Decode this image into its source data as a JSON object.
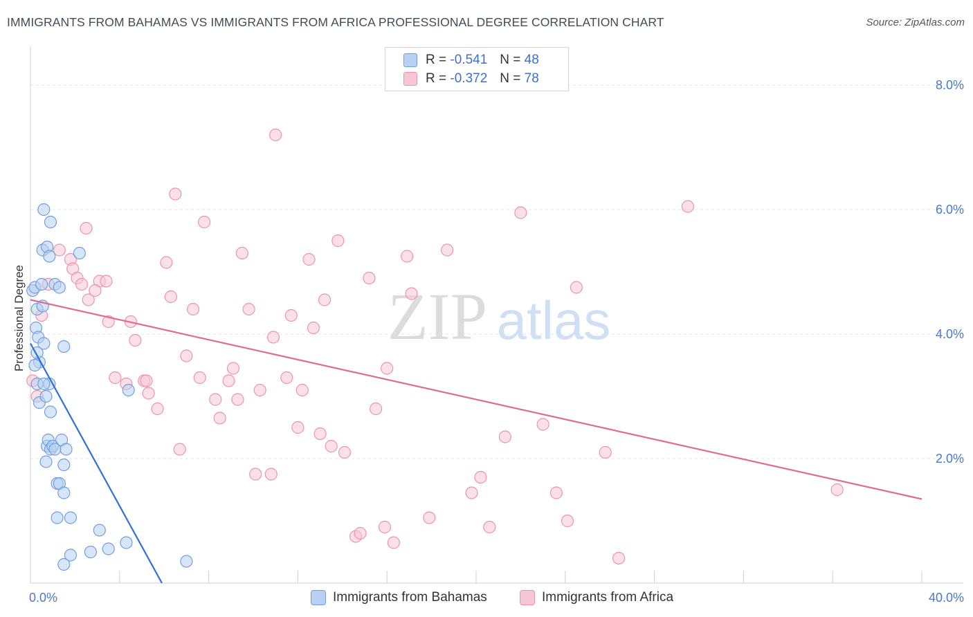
{
  "title": "IMMIGRANTS FROM BAHAMAS VS IMMIGRANTS FROM AFRICA PROFESSIONAL DEGREE CORRELATION CHART",
  "source": "Source: ZipAtlas.com",
  "watermark": {
    "zip": "ZIP",
    "atlas": "atlas"
  },
  "legend": {
    "r_label": "R =",
    "n_label": "N =",
    "series1": {
      "r": "-0.541",
      "n": "48"
    },
    "series2": {
      "r": "-0.372",
      "n": "78"
    }
  },
  "colors": {
    "bahamas_fill": "#b7d0f3",
    "bahamas_stroke": "#6f9de0",
    "bahamas_line": "#2f6fd6",
    "africa_fill": "#f7c6d5",
    "africa_stroke": "#e993b0",
    "africa_line": "#e06a96",
    "tick_text": "#4a78c9",
    "grid": "#e4e4e4"
  },
  "chart_data": {
    "type": "scatter",
    "title": "IMMIGRANTS FROM BAHAMAS VS IMMIGRANTS FROM AFRICA PROFESSIONAL DEGREE CORRELATION CHART",
    "xlabel": "",
    "ylabel": "Professional Degree",
    "xlim": [
      0,
      40
    ],
    "ylim": [
      0,
      8.5
    ],
    "x_tick_labels": [
      "0.0%",
      "40.0%"
    ],
    "y_ticks": [
      2,
      4,
      6,
      8
    ],
    "y_tick_labels": [
      "2.0%",
      "4.0%",
      "6.0%",
      "8.0%"
    ],
    "grid": true,
    "legend_position": "top-center",
    "series": [
      {
        "name": "Immigrants from Bahamas",
        "r": -0.541,
        "n": 48,
        "trend": {
          "x": [
            0.0,
            5.9
          ],
          "y": [
            3.85,
            0.0
          ]
        },
        "points": [
          [
            0.1,
            4.7
          ],
          [
            0.2,
            4.75
          ],
          [
            0.3,
            4.4
          ],
          [
            0.25,
            4.1
          ],
          [
            0.35,
            3.95
          ],
          [
            0.3,
            3.2
          ],
          [
            0.4,
            2.9
          ],
          [
            0.5,
            4.8
          ],
          [
            0.55,
            4.45
          ],
          [
            0.6,
            3.85
          ],
          [
            0.55,
            5.35
          ],
          [
            0.6,
            6.0
          ],
          [
            0.75,
            5.4
          ],
          [
            0.9,
            5.8
          ],
          [
            0.85,
            5.25
          ],
          [
            1.1,
            4.8
          ],
          [
            1.3,
            4.75
          ],
          [
            2.2,
            5.3
          ],
          [
            1.5,
            3.8
          ],
          [
            0.7,
            3.0
          ],
          [
            0.85,
            3.2
          ],
          [
            0.9,
            2.75
          ],
          [
            0.6,
            3.2
          ],
          [
            0.75,
            2.2
          ],
          [
            0.8,
            2.3
          ],
          [
            0.9,
            2.15
          ],
          [
            1.0,
            2.2
          ],
          [
            1.1,
            2.15
          ],
          [
            1.4,
            2.3
          ],
          [
            1.6,
            2.15
          ],
          [
            0.7,
            1.95
          ],
          [
            1.5,
            1.9
          ],
          [
            1.2,
            1.6
          ],
          [
            1.3,
            1.6
          ],
          [
            1.5,
            1.45
          ],
          [
            1.2,
            1.05
          ],
          [
            1.8,
            1.05
          ],
          [
            1.8,
            0.45
          ],
          [
            1.5,
            0.3
          ],
          [
            3.1,
            0.85
          ],
          [
            3.5,
            0.55
          ],
          [
            4.3,
            0.65
          ],
          [
            2.7,
            0.5
          ],
          [
            4.4,
            3.1
          ],
          [
            7.0,
            0.35
          ],
          [
            0.4,
            3.55
          ],
          [
            0.3,
            3.7
          ],
          [
            0.2,
            3.5
          ]
        ]
      },
      {
        "name": "Immigrants from Africa",
        "r": -0.372,
        "n": 78,
        "trend": {
          "x": [
            0.0,
            40.0
          ],
          "y": [
            4.55,
            1.35
          ]
        },
        "points": [
          [
            0.1,
            3.25
          ],
          [
            0.3,
            3.0
          ],
          [
            0.5,
            4.3
          ],
          [
            0.8,
            4.8
          ],
          [
            1.3,
            5.35
          ],
          [
            1.8,
            5.2
          ],
          [
            1.9,
            5.05
          ],
          [
            2.1,
            4.9
          ],
          [
            2.3,
            4.8
          ],
          [
            2.6,
            4.55
          ],
          [
            2.5,
            5.7
          ],
          [
            3.1,
            4.85
          ],
          [
            3.4,
            4.85
          ],
          [
            2.9,
            4.7
          ],
          [
            3.5,
            4.2
          ],
          [
            4.5,
            4.2
          ],
          [
            4.7,
            3.9
          ],
          [
            3.8,
            3.3
          ],
          [
            4.3,
            3.2
          ],
          [
            5.1,
            3.25
          ],
          [
            5.3,
            3.05
          ],
          [
            5.7,
            2.8
          ],
          [
            6.1,
            5.15
          ],
          [
            6.3,
            4.6
          ],
          [
            6.5,
            6.25
          ],
          [
            6.7,
            2.15
          ],
          [
            7.0,
            3.65
          ],
          [
            7.3,
            4.4
          ],
          [
            7.6,
            3.3
          ],
          [
            7.8,
            5.8
          ],
          [
            8.3,
            2.95
          ],
          [
            8.5,
            2.65
          ],
          [
            8.9,
            3.25
          ],
          [
            9.1,
            3.45
          ],
          [
            9.3,
            2.95
          ],
          [
            9.5,
            5.3
          ],
          [
            9.8,
            4.4
          ],
          [
            10.1,
            1.75
          ],
          [
            10.3,
            3.1
          ],
          [
            10.8,
            1.75
          ],
          [
            10.9,
            3.95
          ],
          [
            11.0,
            7.2
          ],
          [
            11.5,
            3.3
          ],
          [
            11.7,
            4.3
          ],
          [
            12.0,
            2.5
          ],
          [
            12.2,
            3.1
          ],
          [
            12.5,
            5.2
          ],
          [
            12.7,
            4.1
          ],
          [
            13.0,
            2.4
          ],
          [
            13.2,
            4.55
          ],
          [
            13.5,
            2.2
          ],
          [
            13.8,
            5.5
          ],
          [
            14.1,
            2.1
          ],
          [
            14.6,
            0.75
          ],
          [
            14.8,
            0.8
          ],
          [
            15.2,
            4.9
          ],
          [
            15.5,
            2.8
          ],
          [
            15.9,
            0.9
          ],
          [
            16.0,
            3.45
          ],
          [
            16.3,
            0.65
          ],
          [
            16.9,
            5.25
          ],
          [
            17.1,
            4.65
          ],
          [
            17.9,
            1.05
          ],
          [
            18.7,
            5.35
          ],
          [
            19.8,
            1.45
          ],
          [
            20.2,
            1.7
          ],
          [
            20.6,
            0.9
          ],
          [
            21.3,
            2.35
          ],
          [
            22.0,
            5.95
          ],
          [
            23.0,
            2.55
          ],
          [
            23.6,
            1.45
          ],
          [
            24.1,
            1.0
          ],
          [
            24.5,
            4.75
          ],
          [
            25.8,
            2.1
          ],
          [
            26.4,
            0.4
          ],
          [
            29.5,
            6.05
          ],
          [
            36.2,
            1.5
          ],
          [
            5.2,
            3.25
          ]
        ]
      }
    ]
  }
}
